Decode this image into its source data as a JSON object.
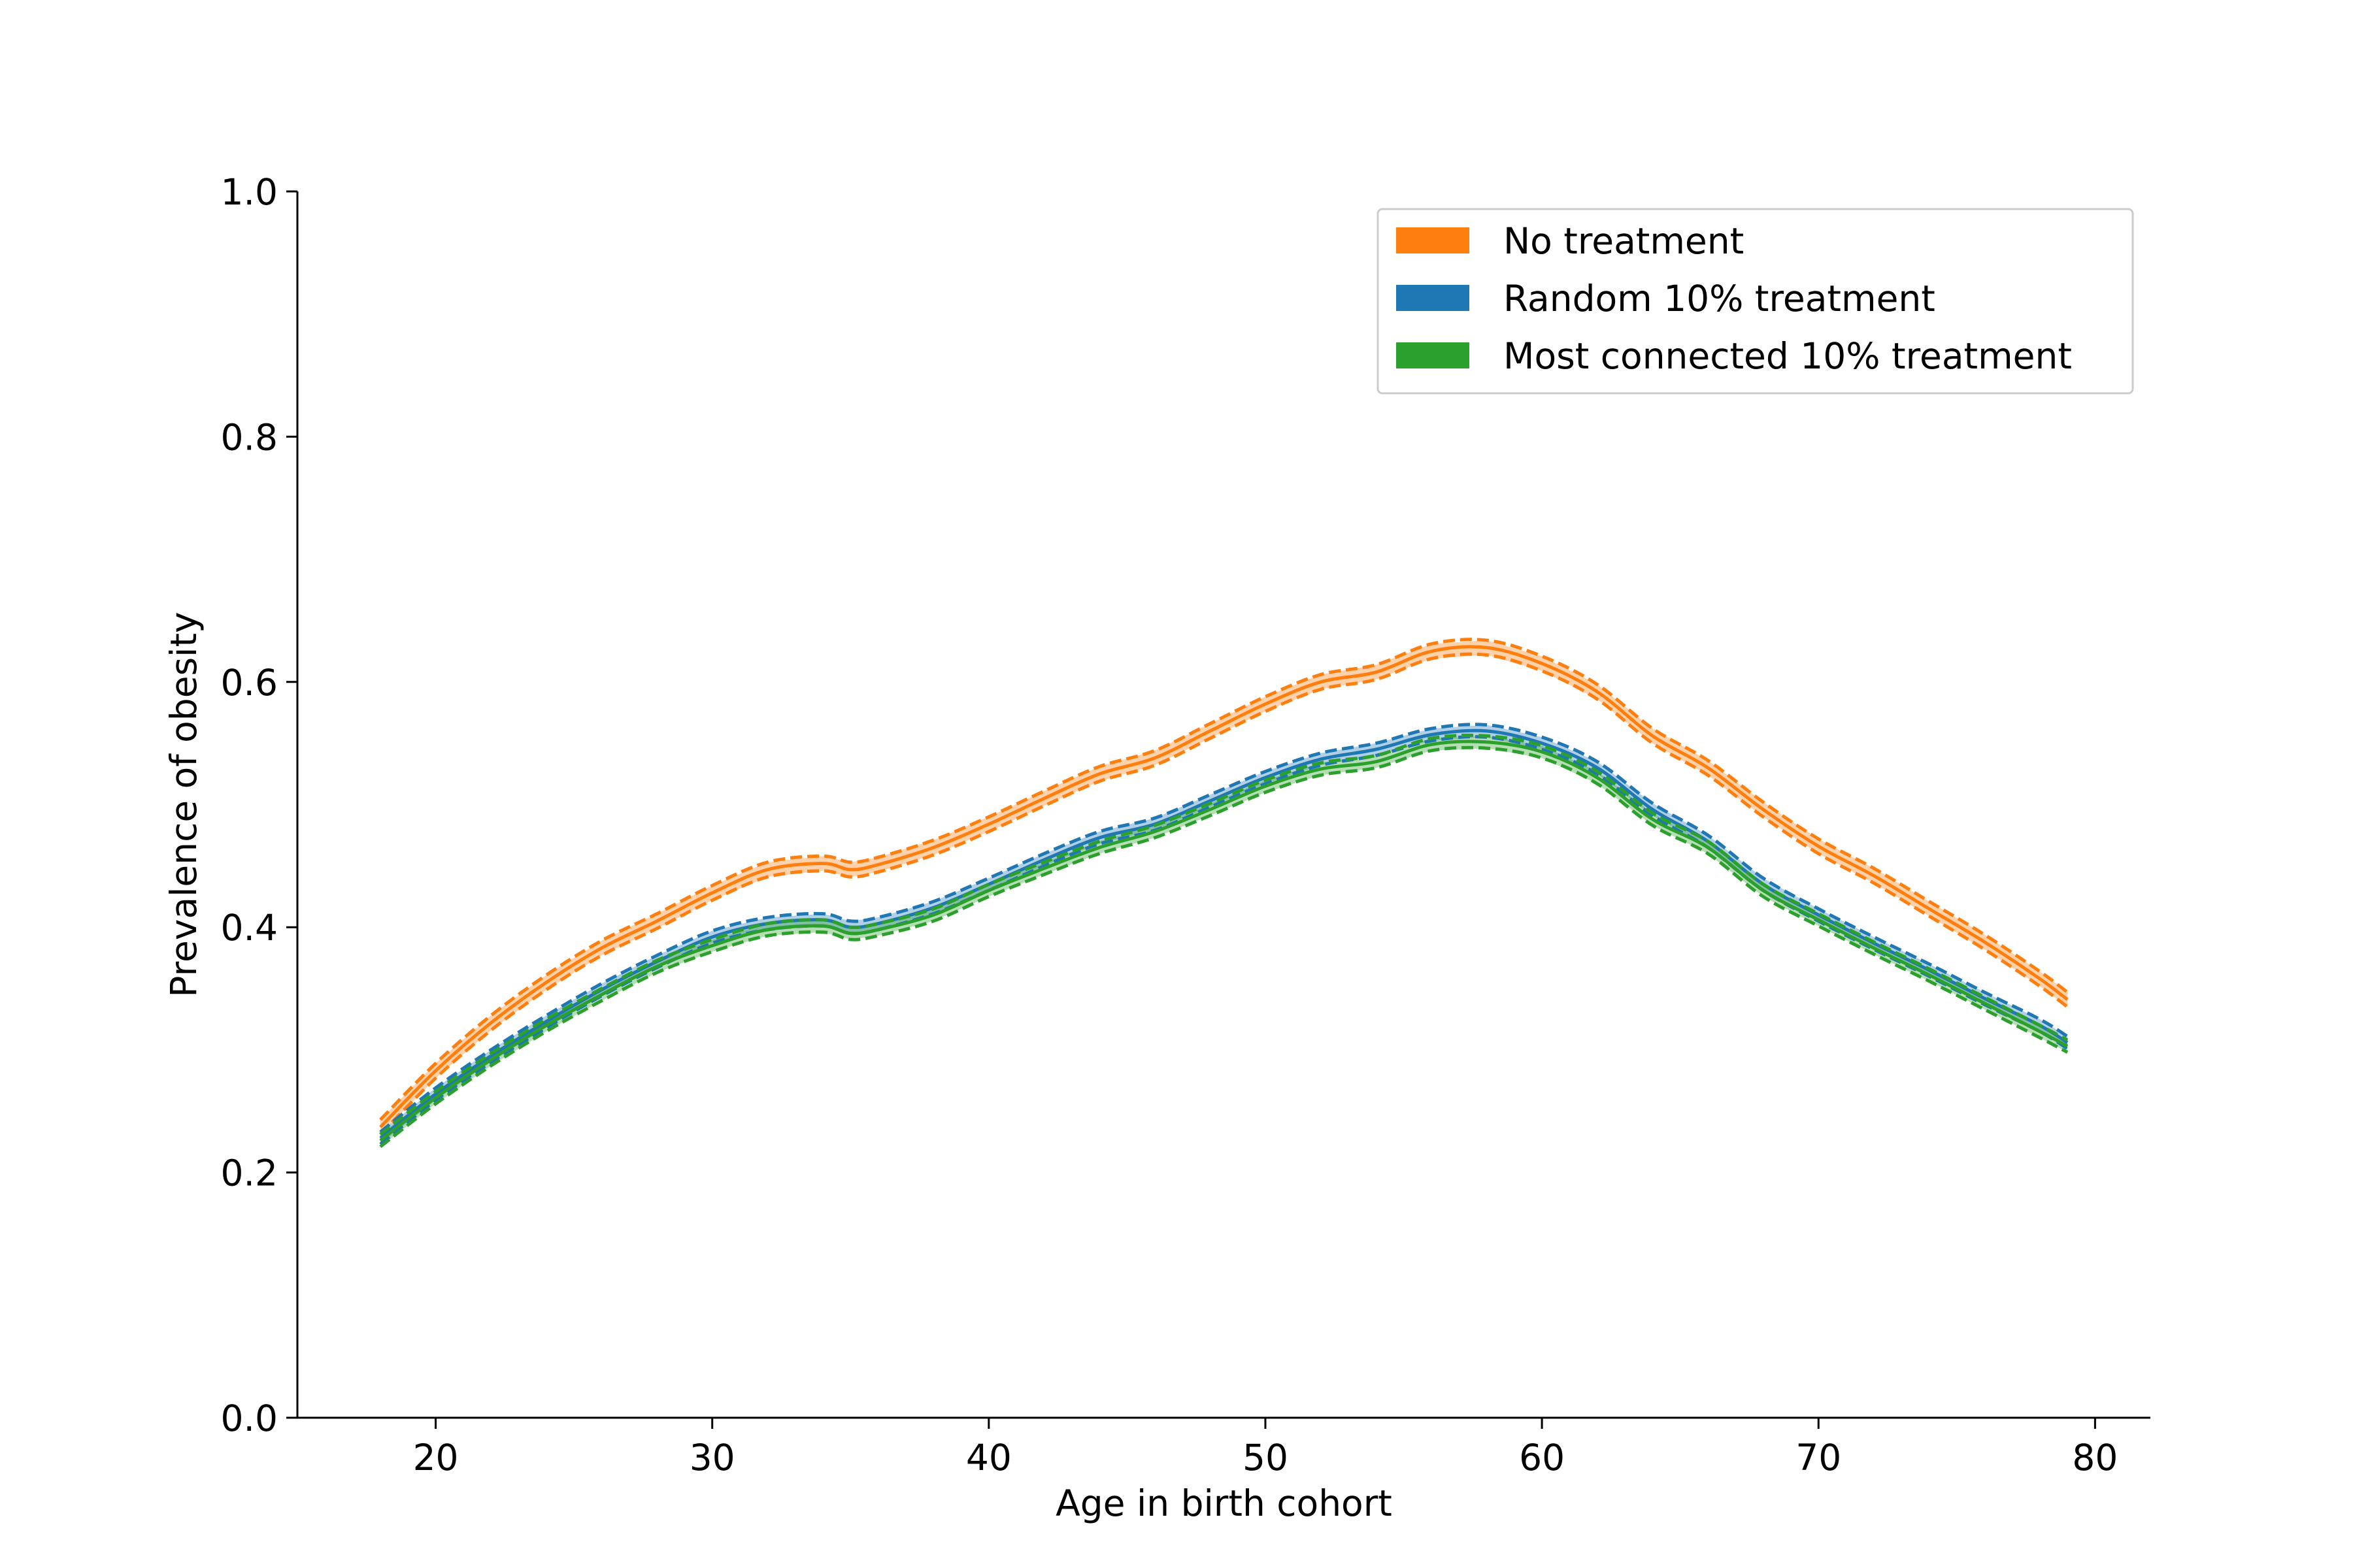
{
  "chart_data": {
    "type": "line",
    "title": "",
    "xlabel": "Age in birth cohort",
    "ylabel": "Prevalence of obesity",
    "xlim": [
      15,
      82
    ],
    "ylim": [
      0.0,
      1.0
    ],
    "x_ticks": [
      20,
      30,
      40,
      50,
      60,
      70,
      80
    ],
    "x_tick_labels": [
      "20",
      "30",
      "40",
      "50",
      "60",
      "70",
      "80"
    ],
    "y_ticks": [
      0.0,
      0.2,
      0.4,
      0.6,
      0.8,
      1.0
    ],
    "y_tick_labels": [
      "0.0",
      "0.2",
      "0.4",
      "0.6",
      "0.8",
      "1.0"
    ],
    "grid": false,
    "legend_position": "top-right",
    "x": [
      18,
      20,
      22,
      24,
      26,
      28,
      30,
      32,
      34,
      35,
      36,
      38,
      40,
      42,
      44,
      46,
      48,
      50,
      52,
      54,
      56,
      58,
      60,
      62,
      64,
      66,
      68,
      70,
      72,
      74,
      76,
      78,
      79
    ],
    "series": [
      {
        "name": "No treatment",
        "color": "#ff7f0e",
        "band_halfwidth": 0.006,
        "values": [
          0.237,
          0.283,
          0.322,
          0.355,
          0.383,
          0.405,
          0.428,
          0.447,
          0.452,
          0.447,
          0.451,
          0.465,
          0.484,
          0.505,
          0.525,
          0.538,
          0.56,
          0.582,
          0.6,
          0.608,
          0.625,
          0.628,
          0.615,
          0.592,
          0.556,
          0.53,
          0.496,
          0.466,
          0.442,
          0.415,
          0.388,
          0.358,
          0.341
        ]
      },
      {
        "name": "Random 10% treatment",
        "color": "#1f77b4",
        "band_halfwidth": 0.005,
        "values": [
          0.228,
          0.264,
          0.295,
          0.323,
          0.349,
          0.372,
          0.392,
          0.403,
          0.406,
          0.4,
          0.403,
          0.416,
          0.435,
          0.455,
          0.473,
          0.484,
          0.503,
          0.522,
          0.537,
          0.545,
          0.557,
          0.56,
          0.55,
          0.53,
          0.496,
          0.47,
          0.435,
          0.41,
          0.387,
          0.365,
          0.342,
          0.32,
          0.306
        ]
      },
      {
        "name": "Most connected 10% treatment",
        "color": "#2ca02c",
        "band_halfwidth": 0.005,
        "values": [
          0.226,
          0.261,
          0.292,
          0.32,
          0.345,
          0.368,
          0.385,
          0.398,
          0.401,
          0.395,
          0.398,
          0.41,
          0.43,
          0.448,
          0.465,
          0.478,
          0.496,
          0.515,
          0.529,
          0.535,
          0.549,
          0.551,
          0.543,
          0.522,
          0.488,
          0.465,
          0.43,
          0.406,
          0.383,
          0.361,
          0.338,
          0.315,
          0.303
        ]
      }
    ]
  }
}
